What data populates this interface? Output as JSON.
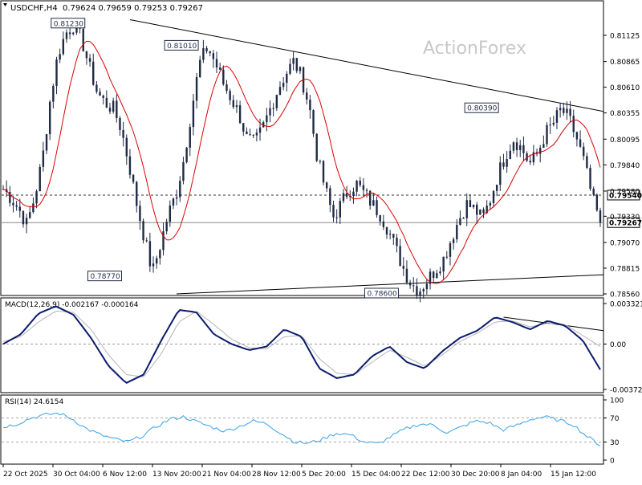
{
  "header": {
    "symbol_tf": "USDCHF,H4",
    "ohlc": "0.79624 0.79659 0.79253 0.79267"
  },
  "watermark": "ActionForex",
  "colors": {
    "candle": "#1f2a44",
    "ma": "#dc0000",
    "macd_main": "#0b1b6e",
    "macd_signal": "#b5b5b5",
    "rsi": "#3aa0e8",
    "grid": "#cfcfcf",
    "text": "#000000"
  },
  "chart_data": [
    {
      "type": "candlestick",
      "title": "USDCHF,H4",
      "ylim": [
        0.7856,
        0.813
      ],
      "y_ticks": [
        "0.81125",
        "0.80865",
        "0.80610",
        "0.80355",
        "0.80095",
        "0.79840",
        "0.79580",
        "0.79330",
        "0.79070",
        "0.78815",
        "0.78560"
      ],
      "price_labels": [
        "0.79540",
        "0.79267"
      ],
      "current_price": 0.79267,
      "reference_level": 0.7954,
      "annotations": [
        "0.81230",
        "0.81010",
        "0.80390",
        "0.78770",
        "0.78600"
      ],
      "trendlines": [
        {
          "label": "upper",
          "from": {
            "x": "30 Oct 2025",
            "y": 0.8128
          },
          "to": {
            "x": "15 Jan 2026",
            "y": 0.8037
          }
        },
        {
          "label": "lower",
          "from": {
            "x": "13 Nov 2025",
            "y": 0.7856
          },
          "to": {
            "x": "15 Jan 2026",
            "y": 0.7875
          }
        }
      ],
      "moving_average": "red",
      "path": [
        0.796,
        0.7951,
        0.794,
        0.7925,
        0.7952,
        0.799,
        0.805,
        0.8095,
        0.8115,
        0.8123,
        0.8108,
        0.808,
        0.8055,
        0.8045,
        0.804,
        0.802,
        0.7985,
        0.7945,
        0.791,
        0.7877,
        0.7905,
        0.7935,
        0.7955,
        0.799,
        0.804,
        0.8085,
        0.8101,
        0.8085,
        0.8065,
        0.805,
        0.8035,
        0.801,
        0.8005,
        0.802,
        0.804,
        0.806,
        0.8075,
        0.8087,
        0.807,
        0.804,
        0.799,
        0.796,
        0.7932,
        0.7945,
        0.796,
        0.7965,
        0.7955,
        0.7945,
        0.7935,
        0.792,
        0.79,
        0.788,
        0.7865,
        0.786,
        0.787,
        0.788,
        0.789,
        0.791,
        0.793,
        0.7945,
        0.794,
        0.793,
        0.795,
        0.7975,
        0.7995,
        0.801,
        0.8,
        0.7985,
        0.7995,
        0.8015,
        0.8025,
        0.8039,
        0.803,
        0.801,
        0.7985,
        0.795,
        0.7927
      ]
    },
    {
      "type": "line",
      "title": "MACD(12,26,9) -0.002167 -0.000164",
      "series_names": [
        "MACD",
        "Signal"
      ],
      "ylim": [
        -0.003723,
        0.003321
      ],
      "y_ticks": [
        "0.003321",
        "0.00",
        "-0.003723"
      ],
      "series": [
        {
          "values": [
            0.0,
            0.0008,
            0.0025,
            0.0031,
            0.0024,
            0.0005,
            -0.0018,
            -0.0032,
            -0.0025,
            0.0003,
            0.0028,
            0.0026,
            0.0008,
            0.0,
            -0.0005,
            -0.0002,
            0.0012,
            0.0006,
            -0.002,
            -0.0028,
            -0.0025,
            -0.001,
            -0.0002,
            -0.0015,
            -0.002,
            -0.0006,
            0.0005,
            0.0011,
            0.0022,
            0.0018,
            0.0012,
            0.0019,
            0.0015,
            0.0003,
            -0.0021
          ]
        },
        {
          "values": [
            0.0002,
            0.0006,
            0.0018,
            0.0027,
            0.0026,
            0.0012,
            -0.0009,
            -0.0025,
            -0.0027,
            -0.0008,
            0.0018,
            0.0027,
            0.0016,
            0.0004,
            -0.0003,
            -0.0004,
            0.0006,
            0.0007,
            -0.0012,
            -0.0024,
            -0.0025,
            -0.0015,
            -0.0005,
            -0.0011,
            -0.0018,
            -0.0009,
            0.0002,
            0.0009,
            0.0018,
            0.0019,
            0.0014,
            0.0017,
            0.0016,
            0.0007,
            -0.0002
          ]
        }
      ]
    },
    {
      "type": "line",
      "title": "RSI(14) 24.6154",
      "ylim": [
        0,
        100
      ],
      "y_ticks": [
        "100",
        "70",
        "30",
        "0"
      ],
      "series": [
        {
          "values": [
            55,
            60,
            70,
            75,
            78,
            68,
            52,
            42,
            35,
            30,
            40,
            55,
            68,
            72,
            63,
            55,
            48,
            56,
            65,
            60,
            45,
            30,
            28,
            35,
            45,
            42,
            30,
            27,
            40,
            52,
            60,
            58,
            45,
            55,
            65,
            62,
            50,
            58,
            68,
            72,
            66,
            60,
            40,
            25
          ]
        }
      ]
    }
  ],
  "x_axis": {
    "ticks": [
      "22 Oct 2025",
      "30 Oct 04:00",
      "6 Nov 12:00",
      "13 Nov 20:00",
      "21 Nov 04:00",
      "28 Nov 12:00",
      "5 Dec 20:00",
      "15 Dec 04:00",
      "22 Dec 12:00",
      "30 Dec 20:00",
      "8 Jan 04:00",
      "15 Jan 12:00"
    ]
  }
}
